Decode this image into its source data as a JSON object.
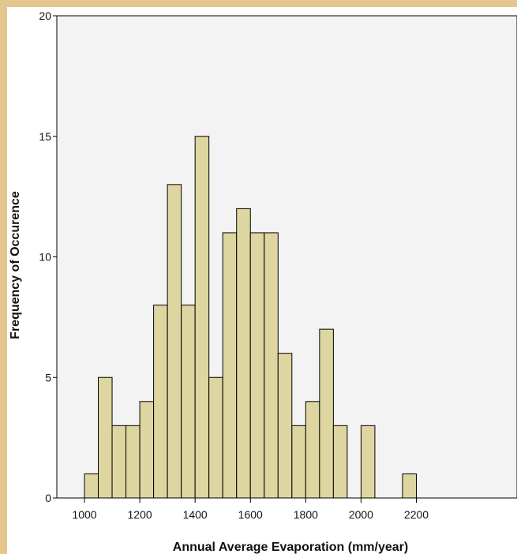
{
  "colors": {
    "page_border": "#e6c68f",
    "plot_background": "#f3f3f3",
    "bar_fill": "#ded6a0",
    "bar_stroke": "#000000"
  },
  "chart_data": {
    "type": "bar",
    "title": "",
    "xlabel": "Annual Average Evaporation (mm/year)",
    "ylabel": "Frequency of Occurence",
    "xlim": [
      930,
      2260
    ],
    "ylim": [
      0,
      20
    ],
    "xticks": [
      1000,
      1200,
      1400,
      1600,
      1800,
      2000,
      2200
    ],
    "xtick_labels": [
      "1000",
      "1200",
      "1400",
      "1600",
      "1800",
      "2000",
      "2200"
    ],
    "yticks": [
      0,
      5,
      10,
      15,
      20
    ],
    "ytick_labels": [
      "0",
      "5",
      "10",
      "15",
      "20"
    ],
    "bin_width": 50,
    "bins": [
      {
        "x0": 1000,
        "x1": 1050,
        "count": 1
      },
      {
        "x0": 1050,
        "x1": 1100,
        "count": 5
      },
      {
        "x0": 1100,
        "x1": 1150,
        "count": 3
      },
      {
        "x0": 1150,
        "x1": 1200,
        "count": 3
      },
      {
        "x0": 1200,
        "x1": 1250,
        "count": 4
      },
      {
        "x0": 1250,
        "x1": 1300,
        "count": 8
      },
      {
        "x0": 1300,
        "x1": 1350,
        "count": 13
      },
      {
        "x0": 1350,
        "x1": 1400,
        "count": 8
      },
      {
        "x0": 1400,
        "x1": 1450,
        "count": 15
      },
      {
        "x0": 1450,
        "x1": 1500,
        "count": 5
      },
      {
        "x0": 1500,
        "x1": 1550,
        "count": 11
      },
      {
        "x0": 1550,
        "x1": 1600,
        "count": 12
      },
      {
        "x0": 1600,
        "x1": 1650,
        "count": 11
      },
      {
        "x0": 1650,
        "x1": 1700,
        "count": 11
      },
      {
        "x0": 1700,
        "x1": 1750,
        "count": 6
      },
      {
        "x0": 1750,
        "x1": 1800,
        "count": 3
      },
      {
        "x0": 1800,
        "x1": 1850,
        "count": 4
      },
      {
        "x0": 1850,
        "x1": 1900,
        "count": 7
      },
      {
        "x0": 1900,
        "x1": 1950,
        "count": 3
      },
      {
        "x0": 1950,
        "x1": 2000,
        "count": 0
      },
      {
        "x0": 2000,
        "x1": 2050,
        "count": 3
      },
      {
        "x0": 2050,
        "x1": 2100,
        "count": 0
      },
      {
        "x0": 2100,
        "x1": 2150,
        "count": 0
      },
      {
        "x0": 2150,
        "x1": 2200,
        "count": 1
      }
    ],
    "grid": false,
    "legend": "none"
  }
}
